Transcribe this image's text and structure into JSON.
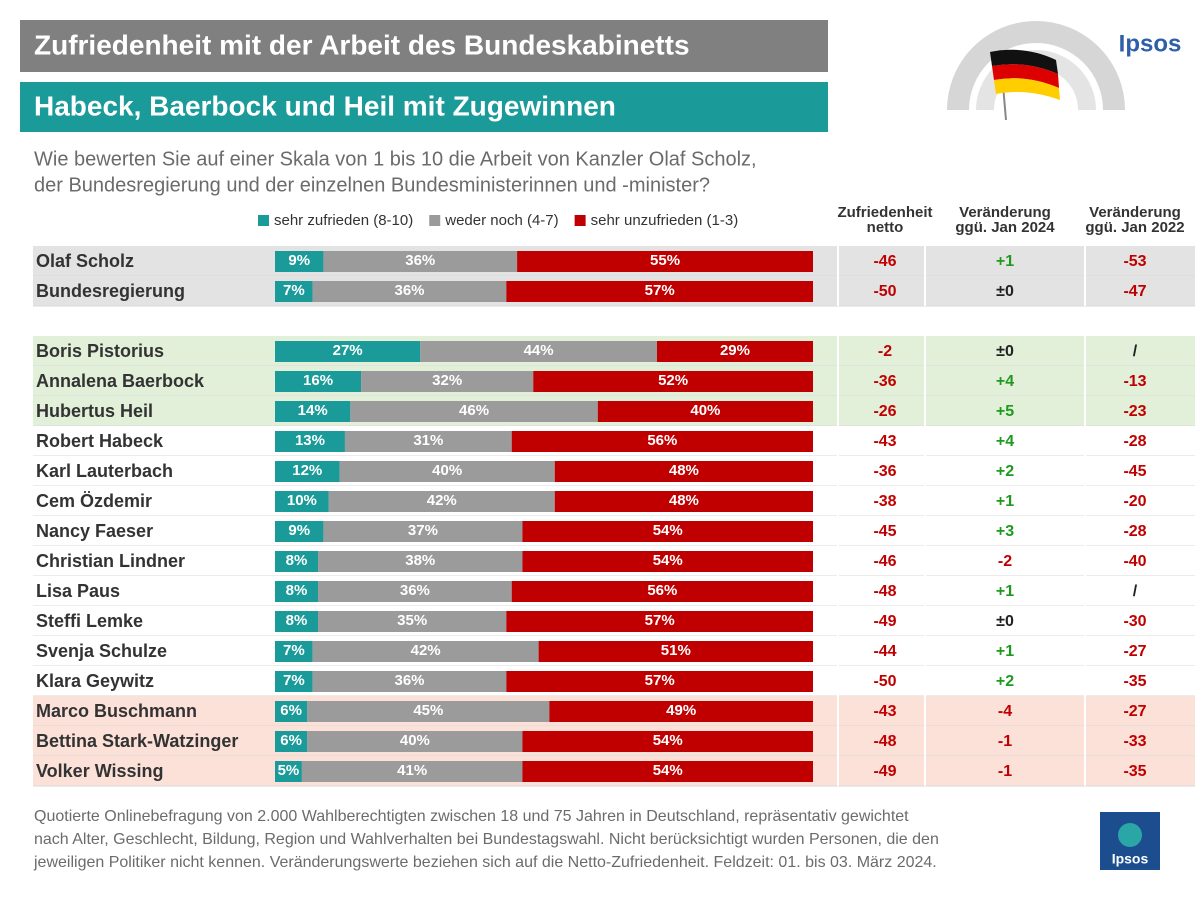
{
  "title": "Zufriedenheit mit der Arbeit des Bundeskabinetts",
  "subtitle": "Habeck, Baerbock und Heil mit Zugewinnen",
  "question": [
    "Wie bewerten Sie auf einer Skala von 1 bis 10 die Arbeit von Kanzler Olaf Scholz,",
    "der Bundesregierung und der einzelnen Bundesministerinnen und -minister?"
  ],
  "logo": "Ipsos",
  "footnote": [
    "Quotierte Onlinebefragung von 2.000 Wahlberechtigten zwischen 18 und 75 Jahren in Deutschland, repräsentativ gewichtet",
    "nach Alter, Geschlecht, Bildung, Region und Wahlverhalten bei Bundestagswahl. Nicht berücksichtigt wurden Personen, die den",
    "jeweiligen Politiker nicht kennen. Veränderungswerte beziehen sich auf die Netto-Zufriedenheit. Feldzeit: 01. bis 03. März 2024."
  ],
  "chart_data": {
    "type": "bar",
    "orientation": "horizontal",
    "stacked": true,
    "legend": "top",
    "xlim": [
      0,
      100
    ],
    "categories": [
      "Olaf Scholz",
      "Bundesregierung",
      "Boris Pistorius",
      "Annalena Baerbock",
      "Hubertus Heil",
      "Robert Habeck",
      "Karl Lauterbach",
      "Cem Özdemir",
      "Nancy Faeser",
      "Christian Lindner",
      "Lisa Paus",
      "Steffi Lemke",
      "Svenja Schulze",
      "Klara Geywitz",
      "Marco Buschmann",
      "Bettina Stark-Watzinger",
      "Volker Wissing"
    ],
    "row_colors": [
      "#e3e3e3",
      "#e3e3e3",
      "#e2efd9",
      "#e2efd9",
      "#e2efd9",
      "#ffffff",
      "#ffffff",
      "#ffffff",
      "#ffffff",
      "#ffffff",
      "#ffffff",
      "#ffffff",
      "#ffffff",
      "#ffffff",
      "#fbe1d8",
      "#fbe1d8",
      "#fbe1d8"
    ],
    "series": [
      {
        "name": "sehr zufrieden (8-10)",
        "color": "#1b9a9a",
        "values": [
          9,
          7,
          27,
          16,
          14,
          13,
          12,
          10,
          9,
          8,
          8,
          8,
          7,
          7,
          6,
          6,
          5
        ],
        "value_labels": [
          "9%",
          "7%",
          "27%",
          "16%",
          "14%",
          "13%",
          "12%",
          "10%",
          "9%",
          "8%",
          "8%",
          "8%",
          "7%",
          "7%",
          "6%",
          "6%",
          "5%"
        ]
      },
      {
        "name": "weder noch (4-7)",
        "color": "#9b9b9b",
        "values": [
          36,
          36,
          44,
          32,
          46,
          31,
          40,
          42,
          37,
          38,
          36,
          35,
          42,
          36,
          45,
          40,
          41
        ],
        "value_labels": [
          "36%",
          "36%",
          "44%",
          "32%",
          "46%",
          "31%",
          "40%",
          "42%",
          "37%",
          "38%",
          "36%",
          "35%",
          "42%",
          "36%",
          "45%",
          "40%",
          "41%"
        ]
      },
      {
        "name": "sehr unzufrieden (1-3)",
        "color": "#c00000",
        "values": [
          55,
          57,
          29,
          52,
          40,
          56,
          48,
          48,
          54,
          54,
          56,
          57,
          51,
          57,
          49,
          54,
          54
        ],
        "value_labels": [
          "55%",
          "57%",
          "29%",
          "52%",
          "40%",
          "56%",
          "48%",
          "48%",
          "54%",
          "54%",
          "56%",
          "57%",
          "51%",
          "57%",
          "49%",
          "54%",
          "54%"
        ]
      }
    ],
    "table": {
      "headers": [
        [
          "Zufriedenheit",
          "netto"
        ],
        [
          "Veränderung",
          "ggü. Jan 2024"
        ],
        [
          "Veränderung",
          "ggü. Jan 2022"
        ]
      ],
      "columns": [
        [
          -46,
          -50,
          -2,
          -36,
          -26,
          -43,
          -36,
          -38,
          -45,
          -46,
          -48,
          -49,
          -44,
          -50,
          -43,
          -48,
          -49
        ],
        [
          "+1",
          "±0",
          "±0",
          "+4",
          "+5",
          "+4",
          "+2",
          "+1",
          "+3",
          "-2",
          "+1",
          "±0",
          "+1",
          "+2",
          "-4",
          "-1",
          "-1"
        ],
        [
          "-53",
          "-47",
          "/",
          "-13",
          "-23",
          "-28",
          "-45",
          "-20",
          "-28",
          "-40",
          "/",
          "-30",
          "-27",
          "-35",
          "-27",
          "-33",
          "-35"
        ]
      ]
    }
  }
}
